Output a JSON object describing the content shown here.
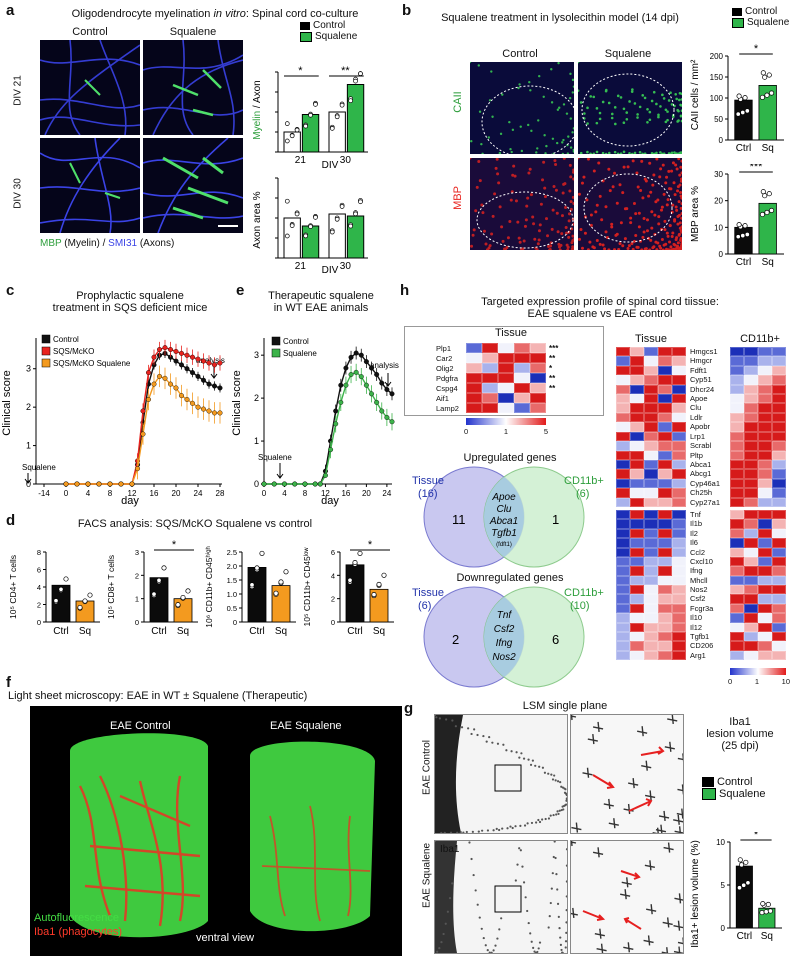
{
  "panel_a": {
    "letter": "a",
    "title_pre": "Oligodendrocyte myelination ",
    "title_em": "in vitro",
    "title_post": ": Spinal cord co-culture",
    "col_control": "Control",
    "col_squalene": "Squalene",
    "row1": "DIV 21",
    "row2": "DIV 30",
    "stain_mbp": "MBP",
    "stain_myelin": " (Myelin) / ",
    "stain_smi": "SMI31",
    "stain_axons": " (Axons)"
  },
  "panel_b": {
    "letter": "b",
    "title": "Squalene treatment in lysolecithin model (14 dpi)",
    "col_control": "Control",
    "col_squalene": "Squalene",
    "row1": "CAII",
    "row2": "MBP"
  },
  "panel_c": {
    "letter": "c",
    "title1": "Prophylactic squalene",
    "title2": "treatment in SQS deficient mice",
    "squalene_label": "Squalene",
    "analysis_label": "analysis"
  },
  "panel_d": {
    "letter": "d",
    "title": "FACS analysis: SQS/McKO Squalene vs control"
  },
  "panel_e": {
    "letter": "e",
    "title1": "Therapeutic squalene",
    "title2": "in WT EAE animals",
    "squalene_label": "Squalene",
    "analysis_label": "analysis"
  },
  "panel_f": {
    "letter": "f",
    "title": "Light sheet microscopy: EAE in WT ± Squalene (Therapeutic)",
    "left": "EAE Control",
    "right": "EAE Squalene",
    "legend1": "Autofluorescence",
    "legend2": "Iba1 (phagocytes)",
    "view": "ventral view"
  },
  "panel_g": {
    "letter": "g",
    "title": "LSM single plane",
    "row1": "EAE Control",
    "row2": "EAE Squalene",
    "stain": "Iba1",
    "side_title1": "Iba1",
    "side_title2": "lesion volume",
    "side_title3": "(25 dpi)",
    "legend_control": "Control",
    "legend_squalene": "Squalene"
  },
  "panel_h": {
    "letter": "h",
    "title1": "Targeted expression profile of spinal cord tiissue:",
    "title2": "EAE squalene vs EAE control",
    "tissue": "Tissue",
    "cd11b": "CD11b+",
    "small_genes": [
      "Plp1",
      "Car2",
      "Olig2",
      "Pdgfra",
      "Cspg4",
      "Aif1",
      "Lamp2"
    ],
    "small_stars": [
      "***",
      "**",
      "*",
      "**",
      "**",
      "",
      ""
    ],
    "small_scale": [
      "0",
      "1",
      "5"
    ],
    "genes_up": [
      "Hmgcs1",
      "Hmgcr",
      "Fdft1",
      "Cyp51",
      "Dhcr24",
      "Apoe",
      "Clu",
      "Ldlr",
      "Apobr",
      "Lrp1",
      "Scrabl",
      "Pltp",
      "Abca1",
      "Abcg1",
      "Cyp46a1",
      "Ch25h",
      "Cyp27a1"
    ],
    "genes_down": [
      "Tnf",
      "Il1b",
      "Il2",
      "Il6",
      "Ccl2",
      "Cxcl10",
      "Ifng",
      "Mhcll",
      "Nos2",
      "Csf2",
      "Fcgr3a",
      "Il10",
      "Il12",
      "Tgfb1",
      "CD206",
      "Arg1"
    ],
    "big_scale": [
      "0",
      "1",
      "10"
    ],
    "venn_up_title": "Upregulated genes",
    "venn_down_title": "Downregulated genes",
    "venn_up_left_label": "Tissue",
    "venn_up_left_n": "(16)",
    "venn_up_right_label": "CD11b+",
    "venn_up_right_n": "(6)",
    "venn_up_left_count": "11",
    "venn_up_right_count": "1",
    "venn_up_shared": [
      "Apoe",
      "Clu",
      "Abca1",
      "Tgfb1"
    ],
    "venn_up_note": "(fdft1)",
    "venn_down_left_label": "Tissue",
    "venn_down_left_n": "(6)",
    "venn_down_right_label": "CD11b+",
    "venn_down_right_n": "(10)",
    "venn_down_left_count": "2",
    "venn_down_right_count": "6",
    "venn_down_shared": [
      "Tnf",
      "Csf2",
      "Ifng",
      "Nos2"
    ]
  },
  "chart_data": [
    {
      "id": "a_myelin",
      "type": "bar",
      "ylabel_green": "Myelin",
      "ylabel_rest": " / Axon",
      "xlabel": "DIV",
      "categories": [
        "21",
        "30"
      ],
      "series": [
        {
          "name": "Control",
          "values": [
            0.04,
            0.08
          ]
        },
        {
          "name": "Squalene",
          "values": [
            0.075,
            0.135
          ]
        }
      ],
      "ylim": [
        0,
        0.16
      ],
      "significance": [
        "*",
        "**"
      ],
      "legend": [
        "Control",
        "Squalene"
      ]
    },
    {
      "id": "a_axon",
      "type": "bar",
      "ylabel": "Axon area %",
      "xlabel": "DIV",
      "categories": [
        "21",
        "30"
      ],
      "series": [
        {
          "name": "Control",
          "values": [
            20,
            22
          ]
        },
        {
          "name": "Squalene",
          "values": [
            16,
            21
          ]
        }
      ],
      "ylim": [
        0,
        40
      ]
    },
    {
      "id": "b_caii",
      "type": "bar",
      "ylabel": "CAII cells / mm²",
      "categories": [
        "Ctrl",
        "Sq"
      ],
      "values": [
        95,
        130
      ],
      "ylim": [
        0,
        200
      ],
      "yticks": [
        "0",
        "50",
        "100",
        "150",
        "200"
      ],
      "significance": "*",
      "legend": [
        "Control",
        "Squalene"
      ]
    },
    {
      "id": "b_mbp",
      "type": "bar",
      "ylabel": "MBP area %",
      "categories": [
        "Ctrl",
        "Sq"
      ],
      "values": [
        10,
        19
      ],
      "ylim": [
        0,
        30
      ],
      "yticks": [
        "0",
        "10",
        "20",
        "30"
      ],
      "significance": "***"
    },
    {
      "id": "c_score",
      "type": "line",
      "ylabel": "Clinical score",
      "xlabel": "day",
      "xticks": [
        "-14",
        "0",
        "4",
        "8",
        "12",
        "16",
        "20",
        "24",
        "28"
      ],
      "yticks": [
        "0",
        "1",
        "2",
        "3"
      ],
      "ylim": [
        0,
        3.8
      ],
      "legend": [
        "Control",
        "SQS/McKO",
        "SQS/McKO Squalene"
      ],
      "x": [
        0,
        2,
        4,
        6,
        8,
        10,
        12,
        13,
        14,
        15,
        16,
        17,
        18,
        19,
        20,
        21,
        22,
        23,
        24,
        25,
        26,
        27,
        28
      ],
      "series": [
        {
          "name": "Control",
          "color": "#111111",
          "values": [
            0,
            0,
            0,
            0,
            0,
            0,
            0,
            0.5,
            1.6,
            2.6,
            3.1,
            3.35,
            3.4,
            3.3,
            3.2,
            3.1,
            3.0,
            2.9,
            2.8,
            2.7,
            2.6,
            2.55,
            2.5
          ]
        },
        {
          "name": "SQS/McKO",
          "color": "#e8231e",
          "values": [
            0,
            0,
            0,
            0,
            0,
            0,
            0,
            0.6,
            1.9,
            2.9,
            3.3,
            3.5,
            3.55,
            3.5,
            3.45,
            3.4,
            3.35,
            3.3,
            3.25,
            3.2,
            3.15,
            3.1,
            3.15
          ]
        },
        {
          "name": "SQS/McKO Squalene",
          "color": "#f39a1f",
          "values": [
            0,
            0,
            0,
            0,
            0,
            0,
            0,
            0.4,
            1.3,
            2.2,
            2.6,
            2.8,
            2.75,
            2.6,
            2.5,
            2.3,
            2.2,
            2.1,
            2.0,
            1.95,
            1.9,
            1.85,
            1.85
          ]
        }
      ]
    },
    {
      "id": "d_facs",
      "type": "bar",
      "charts": [
        {
          "ylabel": "10⁵ CD4+ T cells",
          "yticks": [
            "0",
            "2",
            "4",
            "6",
            "8"
          ],
          "ylim": [
            0,
            8
          ],
          "values": [
            4.2,
            2.4
          ],
          "significance": ""
        },
        {
          "ylabel": "10⁵ CD8+ T cells",
          "yticks": [
            "0",
            "1",
            "2",
            "3"
          ],
          "ylim": [
            0,
            3
          ],
          "values": [
            1.9,
            1.0
          ],
          "significance": "*"
        },
        {
          "ylabel": "10⁶ CD11b+ CD45ʰⁱᵍʰ",
          "yticks": [
            "0",
            "0.5",
            "1.0",
            "1.5",
            "2.0",
            "2.5"
          ],
          "ylim": [
            0,
            2.5
          ],
          "values": [
            1.95,
            1.3
          ],
          "significance": ""
        },
        {
          "ylabel": "10⁵ CD11b+ CD45ˡᵒʷ",
          "yticks": [
            "0",
            "2",
            "4",
            "6"
          ],
          "ylim": [
            0,
            6
          ],
          "values": [
            4.9,
            2.8
          ],
          "significance": "*"
        }
      ],
      "categories": [
        "Ctrl",
        "Sq"
      ]
    },
    {
      "id": "e_score",
      "type": "line",
      "ylabel": "Clinical score",
      "xlabel": "day",
      "xticks": [
        "0",
        "4",
        "8",
        "12",
        "16",
        "20",
        "24"
      ],
      "yticks": [
        "0",
        "1",
        "2",
        "3"
      ],
      "ylim": [
        0,
        3.4
      ],
      "legend": [
        "Control",
        "Squalene"
      ],
      "x": [
        0,
        2,
        4,
        6,
        8,
        10,
        11,
        12,
        13,
        14,
        15,
        16,
        17,
        18,
        19,
        20,
        21,
        22,
        23,
        24,
        25
      ],
      "series": [
        {
          "name": "Control",
          "color": "#111111",
          "values": [
            0,
            0,
            0,
            0,
            0,
            0,
            0,
            0.3,
            1.0,
            1.7,
            2.3,
            2.7,
            2.95,
            3.05,
            3.0,
            2.85,
            2.7,
            2.55,
            2.35,
            2.2,
            2.1
          ]
        },
        {
          "name": "Squalene",
          "color": "#3cb34a",
          "values": [
            0,
            0,
            0,
            0,
            0,
            0,
            0,
            0.2,
            0.8,
            1.4,
            1.9,
            2.3,
            2.55,
            2.6,
            2.5,
            2.3,
            2.1,
            1.9,
            1.7,
            1.55,
            1.45
          ]
        }
      ]
    },
    {
      "id": "g_lesion",
      "type": "bar",
      "ylabel": "Iba1+ lesion volume (%)",
      "categories": [
        "Ctrl",
        "Sq"
      ],
      "values": [
        7.2,
        2.3
      ],
      "ylim": [
        0,
        10
      ],
      "yticks": [
        "0",
        "5",
        "10"
      ],
      "significance": "*"
    }
  ]
}
